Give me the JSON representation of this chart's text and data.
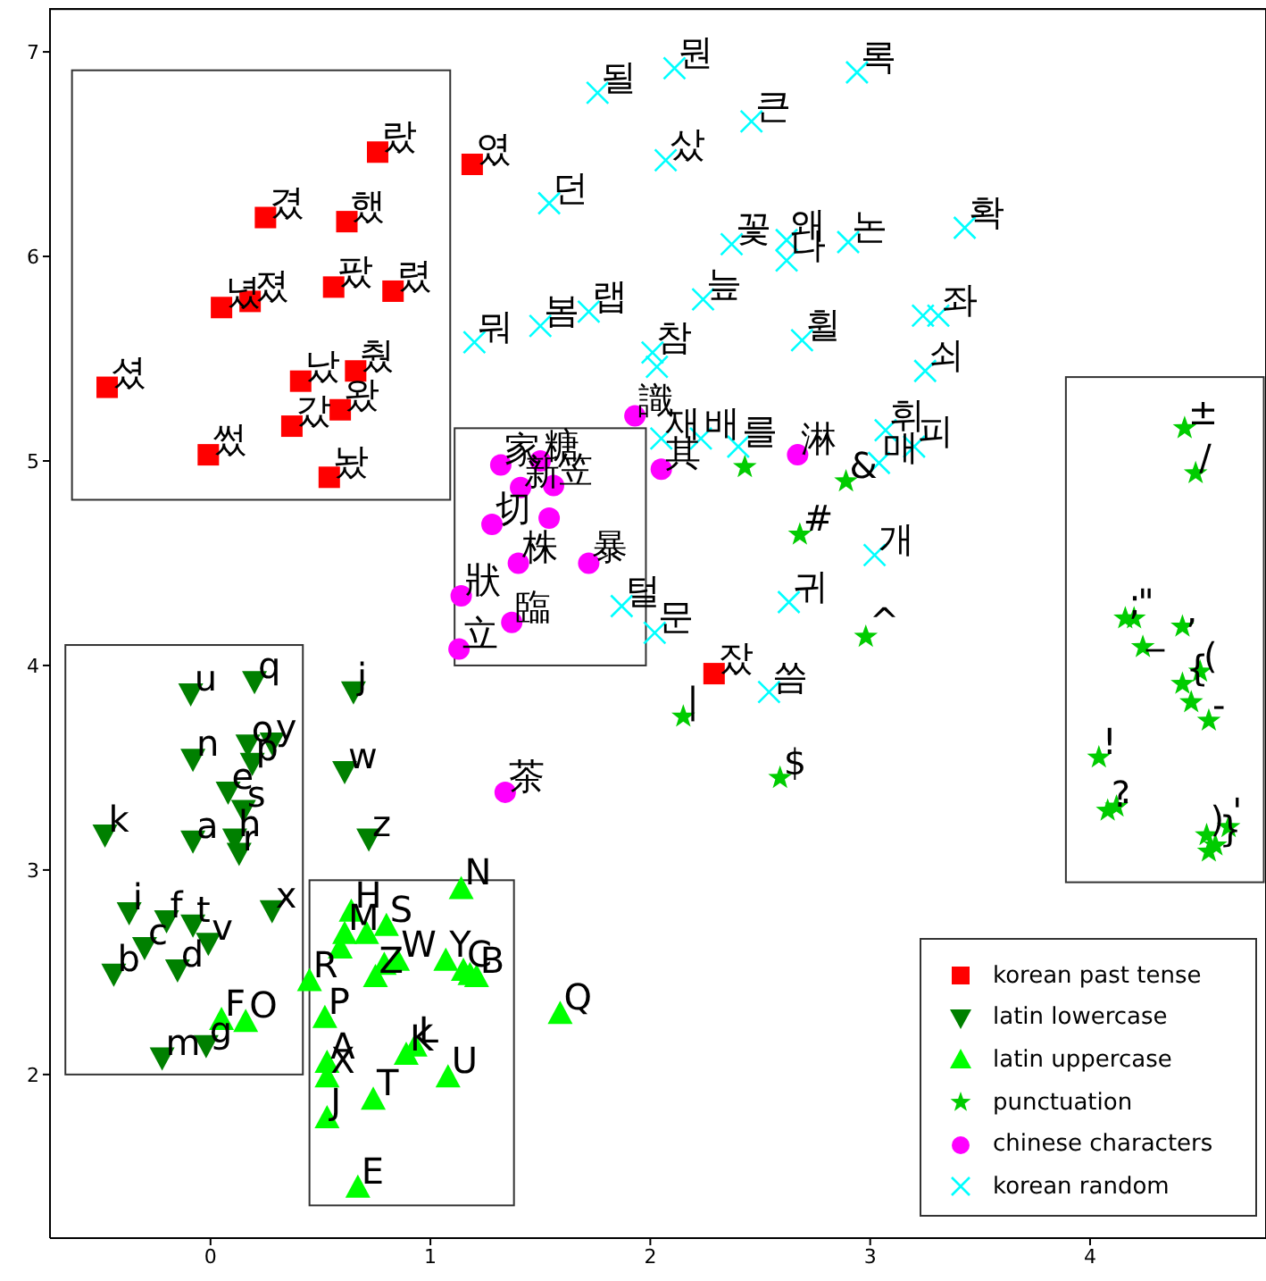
{
  "chart_data": {
    "type": "scatter",
    "xlim": [
      -0.73,
      4.8
    ],
    "ylim": [
      1.2,
      7.21
    ],
    "xticks": [
      0,
      1,
      2,
      3,
      4
    ],
    "yticks": [
      2,
      3,
      4,
      5,
      6,
      7
    ],
    "grid": false,
    "legend": "bottom right",
    "series": [
      {
        "name": "korean past tense",
        "color": "#ff0000",
        "marker": "square",
        "x": [
          0.76,
          1.19,
          0.25,
          0.62,
          0.56,
          0.83,
          0.05,
          0.18,
          -0.47,
          0.41,
          0.66,
          0.37,
          0.59,
          -0.01,
          0.54,
          2.29
        ],
        "values": [
          6.51,
          6.45,
          6.19,
          6.17,
          5.85,
          5.83,
          5.75,
          5.78,
          5.36,
          5.39,
          5.44,
          5.17,
          5.25,
          5.03,
          4.92,
          3.96
        ],
        "value_labels": [
          "랐",
          "였",
          "겼",
          "했",
          "팠",
          "렸",
          "녔",
          "졌",
          "셨",
          "났",
          "췄",
          "갔",
          "왔",
          "썼",
          "놨",
          "잤"
        ]
      },
      {
        "name": "latin lowercase",
        "color": "#008000",
        "marker": "triangle_down",
        "x": [
          -0.09,
          0.2,
          0.65,
          -0.08,
          0.17,
          0.28,
          0.19,
          0.61,
          0.08,
          0.14,
          0.15,
          -0.48,
          -0.08,
          0.11,
          0.13,
          0.72,
          -0.37,
          -0.2,
          -0.08,
          0.28,
          -0.3,
          -0.01,
          -0.44,
          -0.15,
          -0.22,
          -0.02
        ],
        "values": [
          3.86,
          3.92,
          3.87,
          3.54,
          3.61,
          3.62,
          3.52,
          3.48,
          3.38,
          null,
          3.29,
          3.17,
          3.14,
          3.15,
          3.08,
          3.15,
          2.79,
          2.75,
          2.73,
          2.8,
          2.62,
          2.64,
          2.49,
          2.51,
          2.08,
          2.14
        ],
        "value_labels": [
          "u",
          "q",
          "j",
          "n",
          "o",
          "y",
          "p",
          "w",
          "e",
          null,
          "s",
          "k",
          "a",
          "h",
          "r",
          "z",
          "i",
          "f",
          "t",
          "x",
          "c",
          "v",
          "b",
          "d",
          "m",
          "g"
        ]
      },
      {
        "name": "latin uppercase",
        "color": "#00ff00",
        "marker": "triangle",
        "x": [
          1.14,
          0.64,
          0.8,
          0.61,
          0.71,
          1.59,
          0.16,
          0.45,
          0.75,
          0.85,
          0.79,
          0.59,
          1.07,
          1.15,
          1.18,
          1.21,
          0.52,
          0.89,
          0.93,
          0.53,
          0.53,
          0.53,
          0.74,
          1.08,
          0.67,
          0.05
        ],
        "values": [
          2.91,
          2.8,
          2.73,
          2.69,
          2.69,
          2.3,
          2.26,
          2.46,
          2.48,
          2.56,
          2.54,
          2.62,
          2.56,
          2.51,
          2.49,
          2.48,
          2.28,
          2.1,
          2.14,
          2.06,
          1.99,
          1.79,
          1.88,
          1.99,
          1.45,
          2.27
        ],
        "value_labels": [
          "N",
          "H",
          "S",
          "M",
          null,
          "Q",
          "O",
          "R",
          "Z",
          "W",
          null,
          null,
          "Y",
          "C",
          null,
          "B",
          "P",
          "K",
          "L",
          "A",
          "X",
          "J",
          "T",
          "U",
          "E",
          "F"
        ]
      },
      {
        "name": "punctuation",
        "color": "#00cc00",
        "marker": "star",
        "x": [
          2.15,
          2.59,
          2.98,
          2.68,
          2.89,
          2.43,
          4.43,
          4.48,
          4.16,
          4.2,
          4.42,
          4.24,
          4.5,
          4.42,
          4.46,
          4.54,
          4.04,
          4.08,
          4.12,
          4.53,
          4.63,
          4.54,
          4.57
        ],
        "values": [
          3.75,
          3.45,
          4.14,
          4.64,
          4.9,
          4.97,
          5.16,
          4.94,
          4.23,
          4.23,
          4.19,
          4.09,
          3.97,
          3.91,
          3.82,
          3.73,
          3.55,
          3.29,
          3.31,
          3.17,
          3.21,
          3.09,
          3.12
        ],
        "value_labels": [
          "|",
          "$",
          "^",
          "#",
          "&",
          null,
          "±",
          "/",
          ";",
          "\"",
          ",",
          "_",
          "(",
          "{",
          null,
          "-",
          "!",
          "?",
          ".",
          ")",
          "'",
          null,
          "}"
        ]
      },
      {
        "name": "chinese characters",
        "color": "#ff00ff",
        "marker": "circle",
        "x": [
          1.32,
          1.5,
          1.41,
          1.28,
          1.56,
          1.54,
          1.72,
          1.4,
          1.37,
          1.14,
          1.13,
          1.34,
          2.67,
          1.93,
          2.05
        ],
        "values": [
          4.98,
          5.0,
          4.87,
          4.69,
          4.88,
          4.72,
          4.5,
          4.5,
          4.21,
          4.34,
          4.08,
          3.38,
          5.03,
          5.22,
          4.96
        ],
        "value_labels": [
          "家",
          "糖",
          "新",
          "切",
          "笠",
          null,
          "暴",
          "株",
          "臨",
          "狀",
          "立",
          "茶",
          "淋",
          "識",
          "其"
        ]
      },
      {
        "name": "korean random",
        "color": "#00ffff",
        "marker": "cross",
        "x": [
          1.76,
          2.11,
          2.94,
          2.46,
          2.07,
          1.54,
          2.37,
          2.62,
          2.62,
          2.9,
          3.43,
          2.24,
          1.2,
          1.5,
          1.72,
          2.01,
          2.03,
          2.69,
          3.24,
          3.31,
          3.25,
          3.07,
          3.2,
          3.04,
          3.02,
          2.63,
          1.87,
          2.02,
          2.54,
          2.05,
          2.23,
          2.4
        ],
        "values": [
          6.8,
          6.92,
          6.9,
          6.66,
          6.47,
          6.26,
          6.06,
          6.08,
          5.98,
          6.07,
          6.14,
          5.79,
          5.58,
          5.66,
          5.73,
          5.53,
          5.46,
          5.59,
          5.71,
          5.71,
          5.44,
          5.15,
          5.07,
          4.99,
          4.54,
          4.31,
          4.29,
          4.16,
          3.87,
          5.11,
          5.11,
          5.07
        ],
        "value_labels": [
          "될",
          "뭔",
          "록",
          "큰",
          "샀",
          "던",
          "꽃",
          "왜",
          "나",
          "논",
          "확",
          "늪",
          "뭐",
          "봄",
          "랩",
          "참",
          null,
          "휠",
          null,
          "좌",
          "쇠",
          "휘",
          "피",
          "매",
          "개",
          "귀",
          "털",
          "문",
          "씀",
          "재",
          "배",
          "를"
        ]
      }
    ]
  }
}
